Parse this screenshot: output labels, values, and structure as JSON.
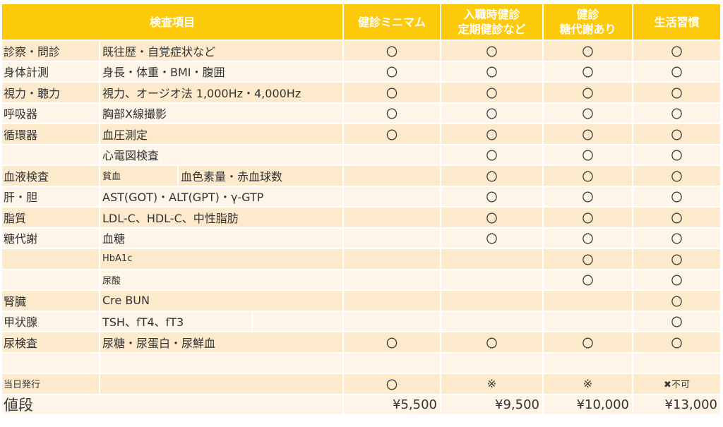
{
  "header": {
    "item": "検査項目",
    "plans": [
      [
        "健診ミニマム"
      ],
      [
        "入職時健診",
        "定期健診など"
      ],
      [
        "健診",
        "糖代謝あり"
      ],
      [
        "生活習慣"
      ]
    ]
  },
  "rows": [
    {
      "cat": "診察・問診",
      "item": "既往歴・自覚症状など",
      "marks": [
        "〇",
        "〇",
        "〇",
        "〇"
      ]
    },
    {
      "cat": "身体計測",
      "item": "身長・体重・BMI・腹囲",
      "marks": [
        "〇",
        "〇",
        "〇",
        "〇"
      ]
    },
    {
      "cat": "視力・聴力",
      "item": "視力、オージオ法 1,000Hz・4,000Hz",
      "marks": [
        "〇",
        "〇",
        "〇",
        "〇"
      ]
    },
    {
      "cat": "呼吸器",
      "item": "胸部X線撮影",
      "marks": [
        "〇",
        "〇",
        "〇",
        "〇"
      ]
    },
    {
      "cat": "循環器",
      "item": "血圧測定",
      "marks": [
        "〇",
        "〇",
        "〇",
        "〇"
      ]
    },
    {
      "cat": "",
      "item": "心電図検査",
      "marks": [
        "",
        "〇",
        "〇",
        "〇"
      ]
    },
    {
      "cat": "血液検査",
      "item": "貧血",
      "item2": "血色素量・赤血球数",
      "marks": [
        "",
        "〇",
        "〇",
        "〇"
      ]
    },
    {
      "cat": "肝・胆",
      "item": "AST(GOT)・ALT(GPT)・γ-GTP",
      "marks": [
        "",
        "〇",
        "〇",
        "〇"
      ]
    },
    {
      "cat": "脂質",
      "item": "LDL-C、HDL-C、中性脂肪",
      "marks": [
        "",
        "〇",
        "〇",
        "〇"
      ]
    },
    {
      "cat": "糖代謝",
      "item": "血糖",
      "marks": [
        "",
        "〇",
        "〇",
        "〇"
      ]
    },
    {
      "cat": "",
      "item": "HbA1c",
      "small": true,
      "marks": [
        "",
        "",
        "〇",
        "〇"
      ]
    },
    {
      "cat": "",
      "item": "尿酸",
      "small": true,
      "marks": [
        "",
        "",
        "〇",
        "〇"
      ]
    },
    {
      "cat": "腎臓",
      "item": "Cre BUN",
      "marks": [
        "",
        "",
        "",
        "〇"
      ]
    },
    {
      "cat": "甲状腺",
      "item": "TSH、fT4、fT3",
      "split": true,
      "marks": [
        "",
        "",
        "",
        "〇"
      ]
    },
    {
      "cat": "尿検査",
      "item": "尿糖・尿蛋白・尿鮮血",
      "marks": [
        "〇",
        "〇",
        "〇",
        "〇"
      ]
    },
    {
      "cat": "",
      "item": "",
      "marks": [
        "",
        "",
        "",
        ""
      ]
    },
    {
      "cat": "当日発行",
      "catSmall": true,
      "item": "",
      "marks": [
        "〇",
        "※",
        "※",
        "✖不可"
      ]
    }
  ],
  "price": {
    "label": "値段",
    "values": [
      "¥5,500",
      "¥9,500",
      "¥10,000",
      "¥13,000"
    ]
  },
  "colors": {
    "header": "#fdc90b",
    "row_dark": "#fde9cc",
    "row_light": "#fef4e7"
  }
}
